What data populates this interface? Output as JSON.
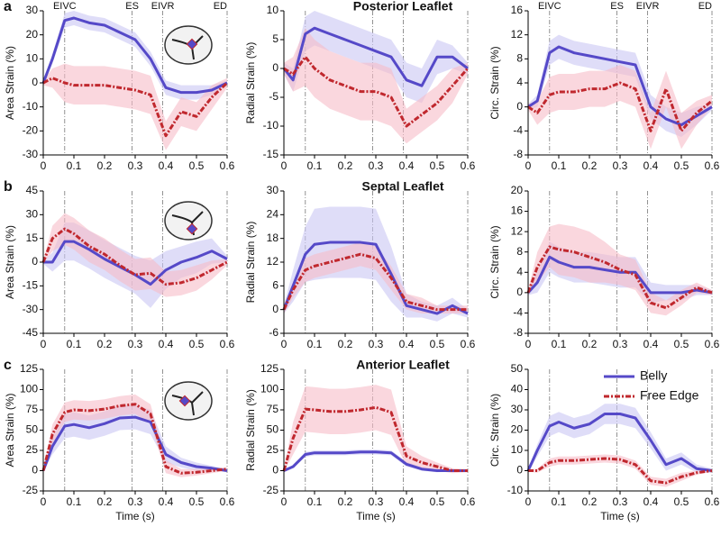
{
  "phases": [
    {
      "value": 0.07,
      "label": "EIVC"
    },
    {
      "value": 0.29,
      "label": "ES"
    },
    {
      "value": 0.39,
      "label": "EIVR"
    },
    {
      "value": 0.6,
      "label": "ED"
    }
  ],
  "chart_data": [
    {
      "type": "line",
      "panel": "a",
      "ylabel": "Area Strain (%)",
      "phase_labels": true,
      "x": [
        0,
        0.03,
        0.07,
        0.1,
        0.15,
        0.2,
        0.25,
        0.3,
        0.35,
        0.4,
        0.45,
        0.5,
        0.55,
        0.6
      ],
      "xlim": [
        0,
        0.6
      ],
      "xticks": [
        0,
        0.1,
        0.2,
        0.3,
        0.4,
        0.5,
        0.6
      ],
      "ylim": [
        -30,
        30
      ],
      "yticks": [
        -30,
        -20,
        -10,
        0,
        10,
        20,
        30
      ],
      "series": [
        {
          "name": "Belly",
          "color": "#5549c8",
          "band_color": "#c9c7f4",
          "values": [
            0,
            10,
            26,
            27,
            25,
            24,
            21,
            18,
            10,
            -2,
            -4,
            -4,
            -3,
            0
          ],
          "sd": [
            1,
            2,
            3,
            3,
            3,
            3,
            3,
            3,
            3,
            3,
            3,
            3,
            2,
            1
          ]
        },
        {
          "name": "Free Edge",
          "color": "#c0282e",
          "band_color": "#f6bcc8",
          "values": [
            0,
            2,
            0,
            -1,
            -1,
            -1,
            -2,
            -3,
            -5,
            -22,
            -12,
            -14,
            -6,
            0
          ],
          "sd": [
            1,
            4,
            8,
            8,
            8,
            8,
            8,
            8,
            8,
            6,
            6,
            6,
            5,
            2
          ]
        }
      ]
    },
    {
      "type": "line",
      "title": "Posterior Leaflet",
      "ylabel": "Radial Strain (%)",
      "phase_labels": false,
      "x": [
        0,
        0.03,
        0.07,
        0.1,
        0.15,
        0.2,
        0.25,
        0.3,
        0.35,
        0.4,
        0.45,
        0.5,
        0.55,
        0.6
      ],
      "xlim": [
        0,
        0.6
      ],
      "xticks": [
        0,
        0.1,
        0.2,
        0.3,
        0.4,
        0.5,
        0.6
      ],
      "ylim": [
        -15,
        10
      ],
      "yticks": [
        -15,
        -10,
        -5,
        0,
        5,
        10
      ],
      "series": [
        {
          "name": "Belly",
          "color": "#5549c8",
          "band_color": "#c9c7f4",
          "values": [
            0,
            -2,
            6,
            7,
            6,
            5,
            4,
            3,
            2,
            -2,
            -3,
            2,
            2,
            0
          ],
          "sd": [
            1,
            2,
            3,
            3,
            3,
            3,
            3,
            3,
            3,
            3,
            3,
            3,
            2,
            1
          ]
        },
        {
          "name": "Free Edge",
          "color": "#c0282e",
          "band_color": "#f6bcc8",
          "values": [
            0,
            -1,
            2,
            0,
            -2,
            -3,
            -4,
            -4,
            -5,
            -10,
            -8,
            -6,
            -3,
            0
          ],
          "sd": [
            1,
            3,
            5,
            5,
            5,
            5,
            5,
            5,
            5,
            3,
            3,
            3,
            3,
            1
          ]
        }
      ]
    },
    {
      "type": "line",
      "ylabel": "Circ. Strain (%)",
      "phase_labels": true,
      "x": [
        0,
        0.03,
        0.07,
        0.1,
        0.15,
        0.2,
        0.25,
        0.3,
        0.35,
        0.4,
        0.45,
        0.5,
        0.55,
        0.6
      ],
      "xlim": [
        0,
        0.6
      ],
      "xticks": [
        0,
        0.1,
        0.2,
        0.3,
        0.4,
        0.5,
        0.6
      ],
      "ylim": [
        -8,
        16
      ],
      "yticks": [
        -8,
        -4,
        0,
        4,
        8,
        12,
        16
      ],
      "series": [
        {
          "name": "Belly",
          "color": "#5549c8",
          "band_color": "#c9c7f4",
          "values": [
            0,
            1,
            9,
            10,
            9,
            8.5,
            8,
            7.5,
            7,
            0,
            -2,
            -3,
            -1.5,
            0
          ],
          "sd": [
            0.5,
            1,
            2,
            2,
            2,
            2,
            2,
            2,
            2,
            2,
            2,
            2,
            1.5,
            0.5
          ]
        },
        {
          "name": "Free Edge",
          "color": "#c0282e",
          "band_color": "#f6bcc8",
          "values": [
            0,
            -1,
            2,
            2.5,
            2.5,
            3,
            3,
            4,
            3,
            -4,
            3,
            -4,
            -1,
            1
          ],
          "sd": [
            0.5,
            2,
            3,
            3,
            3,
            3,
            3,
            3,
            3,
            3,
            3,
            3,
            2,
            1
          ]
        }
      ]
    },
    {
      "type": "line",
      "panel": "b",
      "ylabel": "Area Strain (%)",
      "phase_labels": false,
      "x": [
        0,
        0.03,
        0.07,
        0.1,
        0.15,
        0.2,
        0.25,
        0.3,
        0.35,
        0.4,
        0.45,
        0.5,
        0.55,
        0.6
      ],
      "xlim": [
        0,
        0.6
      ],
      "xticks": [
        0,
        0.1,
        0.2,
        0.3,
        0.4,
        0.5,
        0.6
      ],
      "ylim": [
        -45,
        45
      ],
      "yticks": [
        -45,
        -30,
        -15,
        0,
        15,
        30,
        45
      ],
      "series": [
        {
          "name": "Belly",
          "color": "#5549c8",
          "band_color": "#c9c7f4",
          "values": [
            0,
            0,
            13,
            13,
            8,
            2,
            -3,
            -8,
            -14,
            -5,
            0,
            3,
            7,
            2
          ],
          "sd": [
            1,
            6,
            12,
            12,
            12,
            12,
            12,
            12,
            15,
            12,
            10,
            10,
            8,
            2
          ]
        },
        {
          "name": "Free Edge",
          "color": "#c0282e",
          "band_color": "#f6bcc8",
          "values": [
            0,
            15,
            21,
            18,
            10,
            5,
            -2,
            -8,
            -7,
            -14,
            -13,
            -10,
            -5,
            0
          ],
          "sd": [
            1,
            8,
            10,
            10,
            10,
            10,
            10,
            10,
            10,
            8,
            8,
            8,
            6,
            2
          ]
        }
      ]
    },
    {
      "type": "line",
      "title": "Septal Leaflet",
      "ylabel": "Radial Strain (%)",
      "phase_labels": false,
      "x": [
        0,
        0.03,
        0.07,
        0.1,
        0.15,
        0.2,
        0.25,
        0.3,
        0.35,
        0.4,
        0.45,
        0.5,
        0.55,
        0.6
      ],
      "xlim": [
        0,
        0.6
      ],
      "xticks": [
        0,
        0.1,
        0.2,
        0.3,
        0.4,
        0.5,
        0.6
      ],
      "ylim": [
        -6,
        30
      ],
      "yticks": [
        -6,
        0,
        6,
        12,
        18,
        24,
        30
      ],
      "series": [
        {
          "name": "Belly",
          "color": "#5549c8",
          "band_color": "#c9c7f4",
          "values": [
            0,
            6,
            14,
            16.5,
            17,
            17,
            17,
            16.5,
            9,
            1,
            0,
            -1,
            1,
            -1
          ],
          "sd": [
            1,
            4,
            7,
            9,
            9,
            9,
            9,
            9,
            7,
            3,
            2,
            2,
            2,
            1
          ]
        },
        {
          "name": "Free Edge",
          "color": "#c0282e",
          "band_color": "#f6bcc8",
          "values": [
            0,
            5,
            10,
            11,
            12,
            13,
            14,
            13,
            8,
            2,
            1,
            0,
            0,
            0
          ],
          "sd": [
            1,
            2,
            3,
            3,
            3,
            3,
            3,
            3,
            3,
            2,
            2,
            1,
            1,
            1
          ]
        }
      ]
    },
    {
      "type": "line",
      "ylabel": "Circ. Strain (%)",
      "phase_labels": false,
      "x": [
        0,
        0.03,
        0.07,
        0.1,
        0.15,
        0.2,
        0.25,
        0.3,
        0.35,
        0.4,
        0.45,
        0.5,
        0.55,
        0.6
      ],
      "xlim": [
        0,
        0.6
      ],
      "xticks": [
        0,
        0.1,
        0.2,
        0.3,
        0.4,
        0.5,
        0.6
      ],
      "ylim": [
        -8,
        20
      ],
      "yticks": [
        -8,
        -4,
        0,
        4,
        8,
        12,
        16,
        20
      ],
      "series": [
        {
          "name": "Belly",
          "color": "#5549c8",
          "band_color": "#c9c7f4",
          "values": [
            0,
            2,
            7,
            6,
            5,
            5,
            4.5,
            4,
            4,
            0,
            0,
            0,
            0.5,
            0
          ],
          "sd": [
            0.5,
            2,
            3,
            3,
            3,
            3,
            3,
            3,
            3,
            2,
            1.5,
            1.5,
            1,
            0.5
          ]
        },
        {
          "name": "Free Edge",
          "color": "#c0282e",
          "band_color": "#f6bcc8",
          "values": [
            0,
            5,
            9,
            8.5,
            8,
            7,
            6,
            4.5,
            3.5,
            -2,
            -3,
            -1,
            1,
            0
          ],
          "sd": [
            0.5,
            3,
            4,
            5,
            5,
            5,
            4,
            3,
            3,
            2,
            1.5,
            1.5,
            1,
            0.5
          ]
        }
      ]
    },
    {
      "type": "line",
      "panel": "c",
      "ylabel": "Area Strain (%)",
      "xlabel": "Time (s)",
      "phase_labels": false,
      "x": [
        0,
        0.03,
        0.07,
        0.1,
        0.15,
        0.2,
        0.25,
        0.3,
        0.35,
        0.4,
        0.45,
        0.5,
        0.55,
        0.6
      ],
      "xlim": [
        0,
        0.6
      ],
      "xticks": [
        0,
        0.1,
        0.2,
        0.3,
        0.4,
        0.5,
        0.6
      ],
      "ylim": [
        -25,
        125
      ],
      "yticks": [
        -25,
        0,
        25,
        50,
        75,
        100,
        125
      ],
      "series": [
        {
          "name": "Belly",
          "color": "#5549c8",
          "band_color": "#c9c7f4",
          "values": [
            0,
            30,
            55,
            57,
            53,
            58,
            65,
            66,
            60,
            20,
            10,
            5,
            3,
            0
          ],
          "sd": [
            2,
            10,
            15,
            15,
            15,
            15,
            15,
            15,
            15,
            10,
            6,
            5,
            3,
            2
          ]
        },
        {
          "name": "Free Edge",
          "color": "#c0282e",
          "band_color": "#f6bcc8",
          "values": [
            0,
            45,
            72,
            75,
            74,
            76,
            80,
            82,
            70,
            5,
            -3,
            -2,
            0,
            2
          ],
          "sd": [
            2,
            12,
            12,
            12,
            12,
            12,
            12,
            12,
            12,
            8,
            5,
            4,
            3,
            2
          ]
        }
      ]
    },
    {
      "type": "line",
      "title": "Anterior Leaflet",
      "ylabel": "Radial Strain (%)",
      "xlabel": "Time (s)",
      "phase_labels": false,
      "x": [
        0,
        0.03,
        0.07,
        0.1,
        0.15,
        0.2,
        0.25,
        0.3,
        0.35,
        0.4,
        0.45,
        0.5,
        0.55,
        0.6
      ],
      "xlim": [
        0,
        0.6
      ],
      "xticks": [
        0,
        0.1,
        0.2,
        0.3,
        0.4,
        0.5,
        0.6
      ],
      "ylim": [
        -25,
        125
      ],
      "yticks": [
        -25,
        0,
        25,
        50,
        75,
        100,
        125
      ],
      "series": [
        {
          "name": "Belly",
          "color": "#5549c8",
          "band_color": "#c9c7f4",
          "values": [
            0,
            5,
            20,
            22,
            22,
            22,
            23,
            23,
            22,
            8,
            2,
            0,
            0,
            0
          ],
          "sd": [
            1,
            2,
            3,
            3,
            3,
            3,
            3,
            3,
            3,
            3,
            2,
            2,
            1,
            1
          ]
        },
        {
          "name": "Free Edge",
          "color": "#c0282e",
          "band_color": "#f6bcc8",
          "values": [
            0,
            40,
            76,
            75,
            73,
            73,
            75,
            78,
            72,
            18,
            10,
            5,
            0,
            0
          ],
          "sd": [
            2,
            20,
            28,
            28,
            28,
            28,
            28,
            28,
            28,
            12,
            8,
            5,
            3,
            2
          ]
        }
      ]
    },
    {
      "type": "line",
      "ylabel": "Circ. Strain (%)",
      "xlabel": "Time (s)",
      "phase_labels": false,
      "legend": "upper right",
      "x": [
        0,
        0.03,
        0.07,
        0.1,
        0.15,
        0.2,
        0.25,
        0.3,
        0.35,
        0.4,
        0.45,
        0.5,
        0.55,
        0.6
      ],
      "xlim": [
        0,
        0.6
      ],
      "xticks": [
        0,
        0.1,
        0.2,
        0.3,
        0.4,
        0.5,
        0.6
      ],
      "ylim": [
        -10,
        50
      ],
      "yticks": [
        -10,
        0,
        10,
        20,
        30,
        40,
        50
      ],
      "series": [
        {
          "name": "Belly",
          "color": "#5549c8",
          "band_color": "#c9c7f4",
          "values": [
            0,
            10,
            22,
            24,
            21,
            23,
            28,
            28,
            26,
            15,
            3,
            6,
            1,
            0
          ],
          "sd": [
            1,
            3,
            5,
            5,
            5,
            5,
            5,
            5,
            5,
            4,
            3,
            3,
            2,
            1
          ]
        },
        {
          "name": "Free Edge",
          "color": "#c0282e",
          "band_color": "#f6bcc8",
          "values": [
            0,
            0,
            4,
            5,
            5,
            5.5,
            6,
            5.5,
            3,
            -5,
            -6,
            -3,
            -1,
            0
          ],
          "sd": [
            0.5,
            1,
            2,
            2,
            2,
            2,
            2,
            2,
            2,
            2,
            2,
            2,
            1,
            0.5
          ]
        }
      ]
    }
  ]
}
